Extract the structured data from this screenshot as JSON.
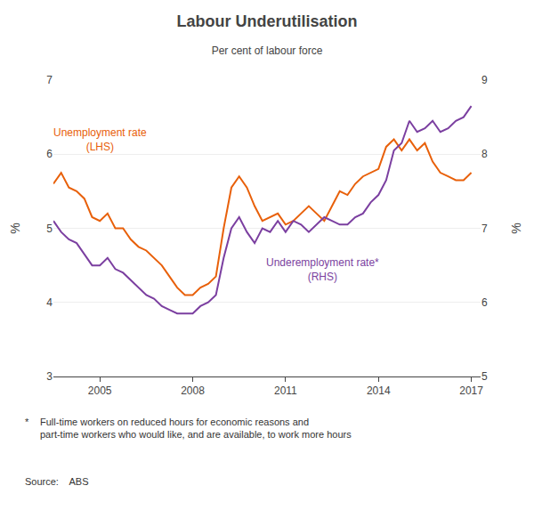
{
  "chart_data": {
    "type": "line",
    "title": "Labour Underutilisation",
    "subtitle": "Per cent of labour force",
    "ylabel": "%",
    "y2label": "%",
    "x": [
      2003.5,
      2003.75,
      2004.0,
      2004.25,
      2004.5,
      2004.75,
      2005.0,
      2005.25,
      2005.5,
      2005.75,
      2006.0,
      2006.25,
      2006.5,
      2006.75,
      2007.0,
      2007.25,
      2007.5,
      2007.75,
      2008.0,
      2008.25,
      2008.5,
      2008.75,
      2009.0,
      2009.25,
      2009.5,
      2009.75,
      2010.0,
      2010.25,
      2010.5,
      2010.75,
      2011.0,
      2011.25,
      2011.5,
      2011.75,
      2012.0,
      2012.25,
      2012.5,
      2012.75,
      2013.0,
      2013.25,
      2013.5,
      2013.75,
      2014.0,
      2014.25,
      2014.5,
      2014.75,
      2015.0,
      2015.25,
      2015.5,
      2015.75,
      2016.0,
      2016.25,
      2016.5,
      2016.75,
      2017.0
    ],
    "series": [
      {
        "name": "Unemployment rate\n(LHS)",
        "color": "#E8600A",
        "axis": "y",
        "values": [
          5.6,
          5.75,
          5.55,
          5.5,
          5.4,
          5.15,
          5.1,
          5.2,
          5.0,
          5.0,
          4.85,
          4.75,
          4.7,
          4.6,
          4.5,
          4.35,
          4.2,
          4.1,
          4.1,
          4.2,
          4.25,
          4.35,
          5.0,
          5.55,
          5.7,
          5.55,
          5.3,
          5.1,
          5.15,
          5.2,
          5.05,
          5.1,
          5.2,
          5.3,
          5.2,
          5.1,
          5.3,
          5.5,
          5.45,
          5.6,
          5.7,
          5.75,
          5.8,
          6.1,
          6.2,
          6.05,
          6.2,
          6.05,
          6.15,
          5.9,
          5.75,
          5.7,
          5.65,
          5.65,
          5.75
        ]
      },
      {
        "name": "Underemployment rate*\n(RHS)",
        "color": "#7B3FA0",
        "axis": "y2",
        "values": [
          7.1,
          6.95,
          6.85,
          6.8,
          6.65,
          6.5,
          6.5,
          6.6,
          6.45,
          6.4,
          6.3,
          6.2,
          6.1,
          6.05,
          5.95,
          5.9,
          5.85,
          5.85,
          5.85,
          5.95,
          6.0,
          6.1,
          6.6,
          7.0,
          7.15,
          6.95,
          6.8,
          7.0,
          6.95,
          7.1,
          6.95,
          7.1,
          7.05,
          6.95,
          7.05,
          7.15,
          7.1,
          7.05,
          7.05,
          7.15,
          7.2,
          7.35,
          7.45,
          7.65,
          8.05,
          8.15,
          8.45,
          8.3,
          8.35,
          8.45,
          8.3,
          8.35,
          8.45,
          8.5,
          8.65
        ]
      }
    ],
    "xlim": [
      2003.5,
      2017.3
    ],
    "xticks": [
      2005,
      2008,
      2011,
      2014,
      2017
    ],
    "ylim": [
      3,
      7
    ],
    "yticks": [
      3,
      4,
      5,
      6,
      7
    ],
    "y2lim": [
      5,
      9
    ],
    "y2ticks": [
      5,
      6,
      7,
      8,
      9
    ],
    "grid": true,
    "annotations": [
      "*",
      "Full-time workers on reduced hours for economic reasons and\npart-time workers who would like, and are available, to work more hours",
      "Source:    ABS"
    ]
  }
}
